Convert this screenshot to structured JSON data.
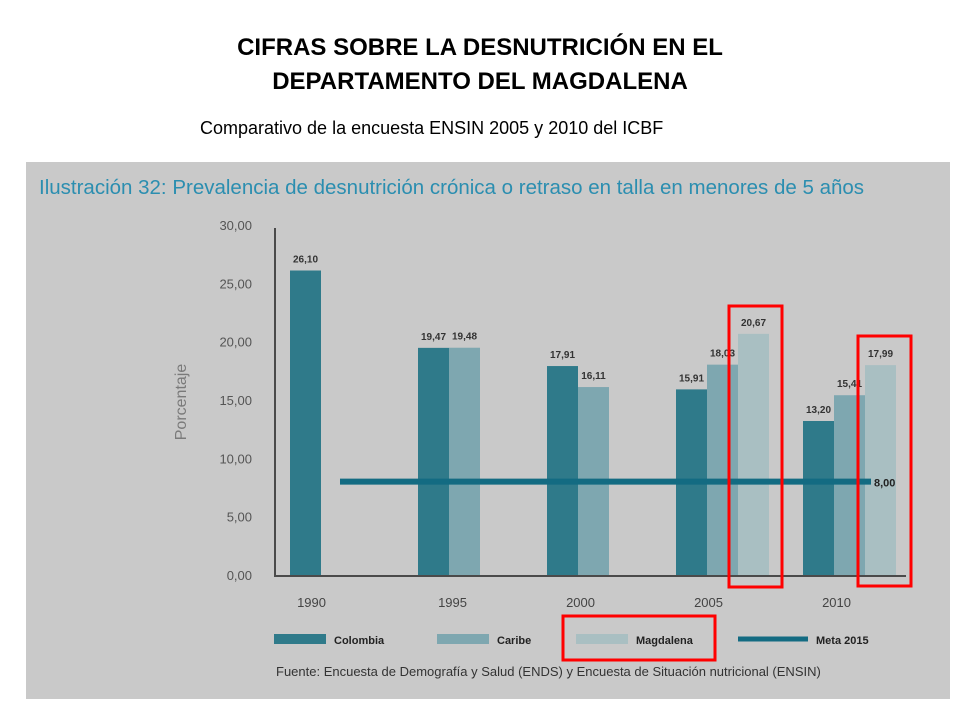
{
  "header": {
    "title_line1": "CIFRAS SOBRE LA DESNUTRICIÓN EN EL",
    "title_line2": "DEPARTAMENTO DEL MAGDALENA",
    "subtitle": "Comparativo de la encuesta ENSIN 2005 y 2010 del ICBF"
  },
  "source_note": "Fuente: Encuesta de Demografía y Salud (ENDS) y Encuesta de Situación nutricional (ENSIN)",
  "chart_data": {
    "type": "bar",
    "title": "Ilustración 32: Prevalencia de desnutrición crónica o retraso en talla en menores de 5 años",
    "xlabel": "",
    "ylabel": "Porcentaje",
    "ylim": [
      0,
      30
    ],
    "y_ticks": [
      "0,00",
      "5,00",
      "10,00",
      "15,00",
      "20,00",
      "25,00",
      "30,00"
    ],
    "categories": [
      "1990",
      "1995",
      "2000",
      "2005",
      "2010"
    ],
    "series": [
      {
        "name": "Colombia",
        "color": "#2f7a8a",
        "values": [
          26.1,
          19.47,
          17.91,
          15.91,
          13.2
        ],
        "labels": [
          "26,10",
          "19,47",
          "17,91",
          "15,91",
          "13,20"
        ]
      },
      {
        "name": "Caribe",
        "color": "#7ea7b0",
        "values": [
          null,
          19.48,
          16.11,
          18.03,
          15.41
        ],
        "labels": [
          "",
          "19,48",
          "16,11",
          "18,03",
          "15,41"
        ]
      },
      {
        "name": "Magdalena",
        "color": "#a9bfc2",
        "values": [
          null,
          null,
          null,
          20.67,
          17.99
        ],
        "labels": [
          "",
          "",
          "",
          "20,67",
          "17,99"
        ]
      }
    ],
    "reference_line": {
      "name": "Meta 2015",
      "value": 8.0,
      "label": "8,00",
      "color": "#136b82"
    },
    "highlighted": [
      "Magdalena 2005",
      "Magdalena 2010",
      "Magdalena legend"
    ],
    "highlight_color": "#ff0000"
  }
}
